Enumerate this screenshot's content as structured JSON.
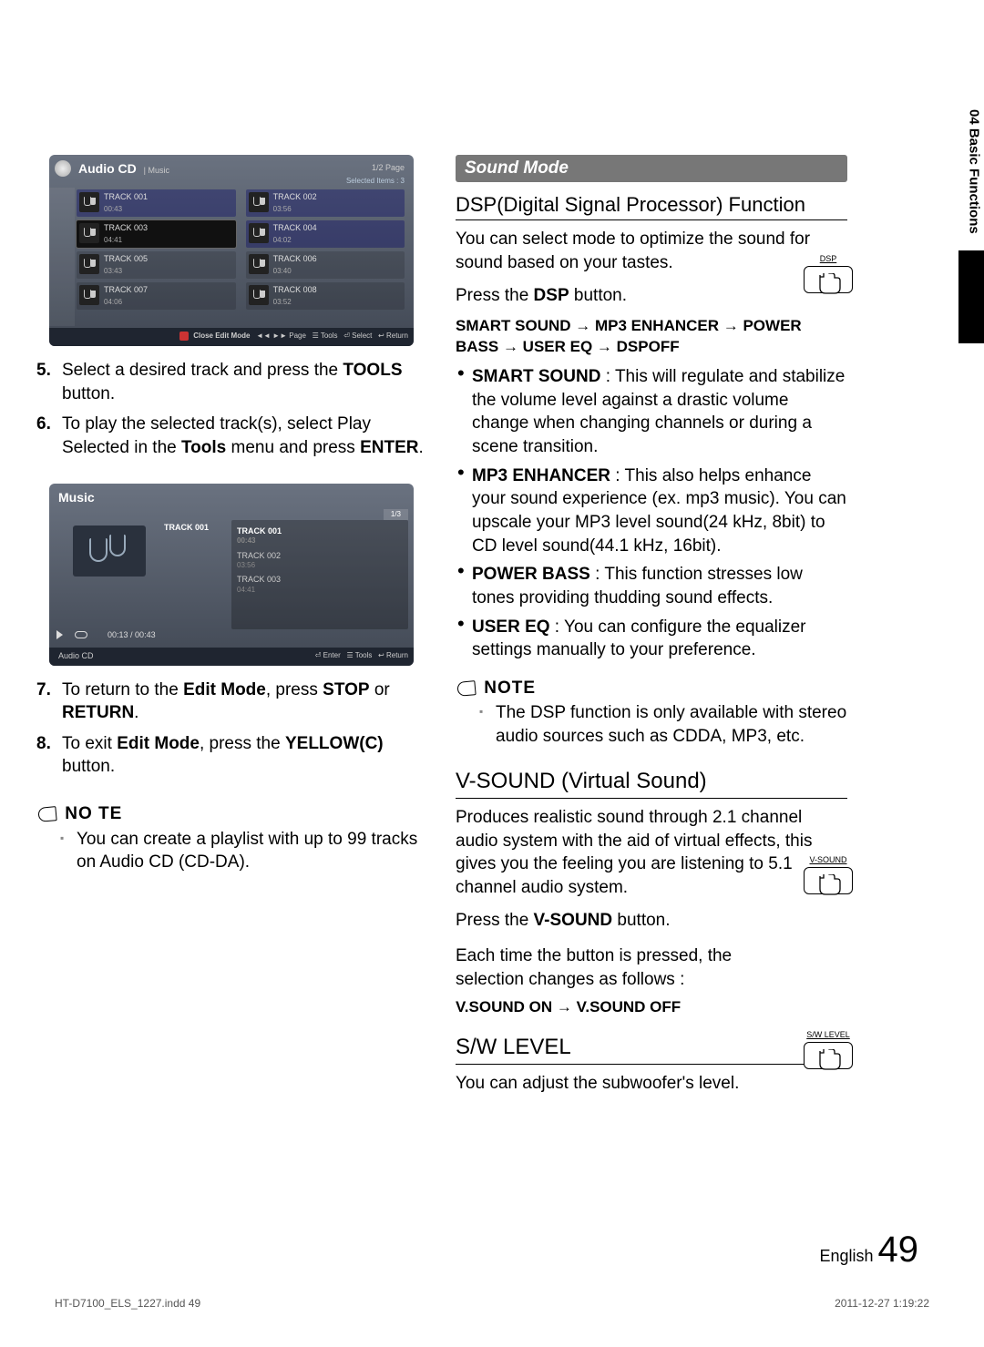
{
  "sideTab": {
    "label": "04  Basic Functions"
  },
  "shot1": {
    "title": "Audio CD",
    "sub": "| Music",
    "page": "1/2 Page",
    "selected": "Selected Items : 3",
    "tracks": [
      {
        "n": "TRACK 001",
        "t": "00:43",
        "sel": true
      },
      {
        "n": "TRACK 002",
        "t": "03:56",
        "sel": true
      },
      {
        "n": "TRACK 003",
        "t": "04:41",
        "sel": false,
        "hi": true
      },
      {
        "n": "TRACK 004",
        "t": "04:02",
        "sel": true
      },
      {
        "n": "TRACK 005",
        "t": "03:43",
        "sel": false
      },
      {
        "n": "TRACK 006",
        "t": "03:40",
        "sel": false
      },
      {
        "n": "TRACK 007",
        "t": "04:06",
        "sel": false
      },
      {
        "n": "TRACK 008",
        "t": "03:52",
        "sel": false
      }
    ],
    "footer": {
      "close": "Close Edit Mode",
      "page": "◄◄ ►► Page",
      "tools": "Tools",
      "select": "Select",
      "return": "Return"
    }
  },
  "steps1": [
    {
      "n": "5.",
      "t": [
        "Select a desired track and press the ",
        [
          "b",
          "TOOLS"
        ],
        " button."
      ]
    },
    {
      "n": "6.",
      "t": [
        "To play the selected track(s), select Play Selected in the ",
        [
          "b",
          "Tools"
        ],
        " menu and press ",
        [
          "b",
          "ENTER"
        ],
        "."
      ]
    }
  ],
  "shot2": {
    "title": "Music",
    "tab": "1/3",
    "track": "TRACK 001",
    "list": [
      {
        "n": "TRACK 001",
        "t": "00:43",
        "on": true
      },
      {
        "n": "TRACK 002",
        "t": "03:56"
      },
      {
        "n": "TRACK 003",
        "t": "04:41"
      }
    ],
    "time": "00:13 / 00:43",
    "src": "Audio CD",
    "footer": {
      "enter": "Enter",
      "tools": "Tools",
      "return": "Return"
    }
  },
  "steps2": [
    {
      "n": "7.",
      "t": [
        "To return to the ",
        [
          "b",
          "Edit Mode"
        ],
        ", press ",
        [
          "b",
          "STOP"
        ],
        " or ",
        [
          "b",
          "RETURN"
        ],
        "."
      ]
    },
    {
      "n": "8.",
      "t": [
        "To exit ",
        [
          "b",
          "Edit Mode"
        ],
        ", press the ",
        [
          "b",
          "YELLOW(C)"
        ],
        " button."
      ]
    }
  ],
  "note1": {
    "h": "NO TE",
    "items": [
      "You can create a playlist with up to 99 tracks on Audio CD (CD-DA)."
    ]
  },
  "right": {
    "modeHeader": "Sound Mode",
    "dsp": {
      "h": "DSP(Digital Signal Processor) Function",
      "p1": "You can select mode to optimize the sound for sound based on your tastes.",
      "p2": [
        "Press the ",
        [
          "b",
          "DSP"
        ],
        " button."
      ],
      "seq": "SMART SOUND → MP3 ENHANCER → POWER BASS → USER EQ → DSPOFF",
      "btn": "DSP",
      "feat": [
        {
          "b": "SMART SOUND",
          "t": " : This will regulate and stabilize the volume level against a drastic volume change when changing channels or during a scene transition."
        },
        {
          "b": "MP3 ENHANCER",
          "t": " : This also helps enhance your sound experience (ex. mp3 music). You can upscale your MP3 level sound(24 kHz, 8bit) to CD level sound(44.1 kHz, 16bit)."
        },
        {
          "b": "POWER BASS",
          "t": " : This function stresses low tones providing thudding sound effects."
        },
        {
          "b": "USER EQ",
          "t": " : You can configure the equalizer settings manually to your preference."
        }
      ],
      "note": {
        "h": "NOTE",
        "items": [
          "The DSP function is only available with stereo audio sources such as CDDA, MP3, etc."
        ]
      }
    },
    "vsound": {
      "h": "V-SOUND (Virtual Sound)",
      "p1": "Produces realistic sound through 2.1 channel audio system with the aid of virtual effects, this gives you the feeling you are listening to 5.1 channel audio system.",
      "p2": [
        "Press the ",
        [
          "b",
          "V-SOUND"
        ],
        " button."
      ],
      "p3": "Each time the button is pressed, the selection changes as follows :",
      "seq": "V.SOUND ON → V.SOUND OFF",
      "btn": "V-SOUND"
    },
    "sw": {
      "h": "S/W LEVEL",
      "p1": "You can adjust the subwoofer's level.",
      "btn": "S/W LEVEL"
    }
  },
  "footer": {
    "lang": "English",
    "num": "49",
    "indd": "HT-D7100_ELS_1227.indd   49",
    "stamp": "2011-12-27   1:19:22"
  }
}
